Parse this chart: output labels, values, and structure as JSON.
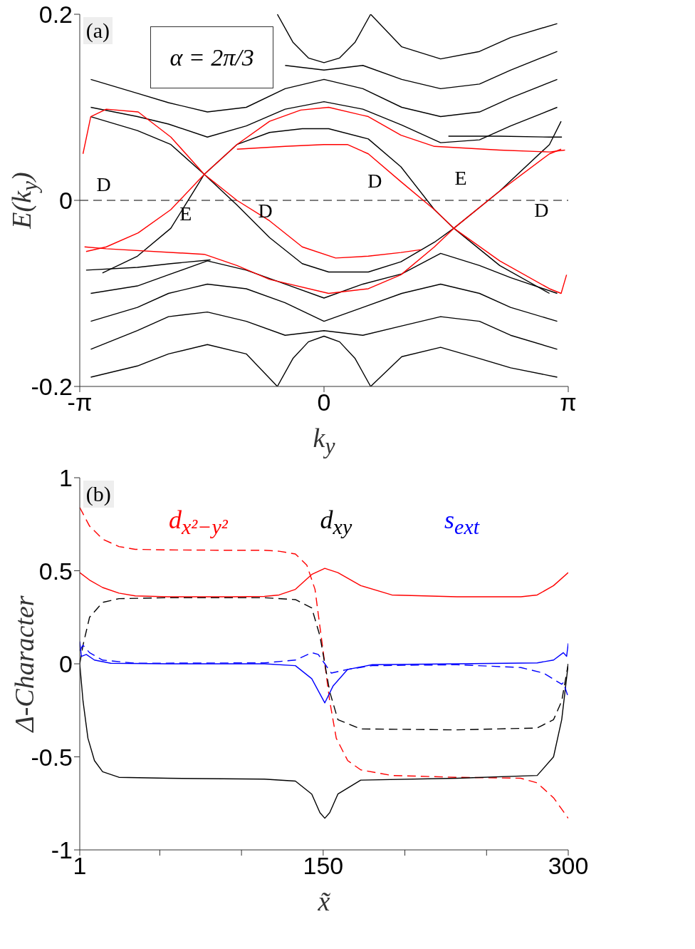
{
  "chart_data": [
    {
      "type": "line",
      "xlabel": "k$_{y}$",
      "ylabel": "E(k$_{y}$)",
      "xlim": [
        -3.14159,
        3.14159
      ],
      "xticks": [
        {
          "value": -3.14159,
          "label": "-π"
        },
        0,
        {
          "value": 3.14159,
          "label": "π"
        }
      ],
      "ylim": [
        -0.2,
        0.2
      ],
      "yticks": [
        -0.2,
        0,
        0.2
      ],
      "annotations": [
        "(a)",
        "α = 2π/3",
        "D",
        "E",
        "D",
        "D",
        "E",
        "D"
      ],
      "ref_lines": [
        {
          "axis": "y",
          "value": 0,
          "color": "#000000",
          "line_style": "dashed"
        }
      ],
      "series": [
        {
          "color": "#000000",
          "x": [
            -3.0,
            -2.4,
            -2.0,
            -1.5,
            -1.0,
            -0.5,
            0,
            0.5,
            1.0,
            1.5,
            2.0,
            2.4,
            3.0
          ],
          "values": [
            0.1,
            0.09,
            0.082,
            0.068,
            0.08,
            0.098,
            0.106,
            0.098,
            0.081,
            0.062,
            0.065,
            0.08,
            0.1
          ]
        },
        {
          "color": "#000000",
          "x": [
            -3.0,
            -2.4,
            -2.0,
            -1.5,
            -1.0,
            -0.5,
            0,
            0.5,
            1.0,
            1.5,
            2.0,
            2.4,
            3.0
          ],
          "values": [
            0.13,
            0.115,
            0.105,
            0.095,
            0.1,
            0.12,
            0.13,
            0.12,
            0.1,
            0.09,
            0.095,
            0.11,
            0.13
          ]
        },
        {
          "color": "#000000",
          "x": [
            -0.5,
            0,
            0.5,
            1.0,
            1.5,
            2.0,
            2.4,
            3.0
          ],
          "values": [
            0.145,
            0.14,
            0.145,
            0.13,
            0.12,
            0.125,
            0.14,
            0.16
          ]
        },
        {
          "color": "#000000",
          "x": [
            0.6,
            1.0,
            1.5,
            2.0,
            2.4,
            3.0
          ],
          "values": [
            0.2,
            0.165,
            0.152,
            0.16,
            0.175,
            0.19
          ]
        },
        {
          "color": "#000000",
          "x": [
            -0.6,
            -0.4,
            -0.2,
            0,
            0.2,
            0.4,
            0.6
          ],
          "values": [
            0.2,
            0.17,
            0.153,
            0.148,
            0.153,
            0.17,
            0.2
          ]
        },
        {
          "color": "#000000",
          "x": [
            -3.0,
            -2.4,
            -2.0,
            -1.5,
            -1.0,
            -0.5,
            0,
            0.5,
            1.0,
            1.5,
            2.0,
            2.4,
            3.0
          ],
          "values": [
            -0.1,
            -0.092,
            -0.08,
            -0.065,
            -0.075,
            -0.09,
            -0.105,
            -0.09,
            -0.079,
            -0.057,
            -0.07,
            -0.083,
            -0.1
          ]
        },
        {
          "color": "#000000",
          "x": [
            -3.0,
            -2.4,
            -2.0,
            -1.5,
            -1.0,
            -0.5,
            0,
            0.5,
            1.0,
            1.5,
            2.0,
            2.4,
            3.0
          ],
          "values": [
            -0.13,
            -0.115,
            -0.1,
            -0.09,
            -0.095,
            -0.11,
            -0.13,
            -0.115,
            -0.1,
            -0.09,
            -0.1,
            -0.115,
            -0.13
          ]
        },
        {
          "color": "#000000",
          "x": [
            -3.0,
            -2.4,
            -2.0,
            -1.5,
            -1.0,
            -0.5,
            0,
            0.5,
            1.0,
            1.5,
            2.0,
            2.4,
            3.0
          ],
          "values": [
            -0.16,
            -0.14,
            -0.125,
            -0.12,
            -0.13,
            -0.145,
            -0.14,
            -0.145,
            -0.135,
            -0.125,
            -0.13,
            -0.145,
            -0.16
          ]
        },
        {
          "color": "#000000",
          "x": [
            -3.0,
            -2.4,
            -2.0,
            -1.5,
            -1.0,
            -0.6
          ],
          "values": [
            -0.19,
            -0.178,
            -0.165,
            -0.155,
            -0.165,
            -0.2
          ]
        },
        {
          "color": "#000000",
          "x": [
            0.6,
            1.0,
            1.5,
            2.0,
            2.4,
            3.0
          ],
          "values": [
            -0.2,
            -0.168,
            -0.158,
            -0.17,
            -0.18,
            -0.19
          ]
        },
        {
          "color": "#000000",
          "x": [
            -0.6,
            -0.4,
            -0.2,
            0,
            0.2,
            0.4,
            0.6
          ],
          "values": [
            -0.2,
            -0.17,
            -0.152,
            -0.146,
            -0.152,
            -0.17,
            -0.2
          ]
        },
        {
          "color": "#000000",
          "x": [
            -2.85,
            -2.4,
            -1.97,
            -1.54,
            -1.12,
            -0.7,
            -0.28,
            0.06,
            0.57,
            0.99,
            1.42,
            1.67,
            2.26,
            2.9
          ],
          "values": [
            -0.078,
            -0.06,
            -0.03,
            0.028,
            0.06,
            0.073,
            0.077,
            0.077,
            0.066,
            0.036,
            -0.01,
            -0.03,
            -0.07,
            -0.1
          ]
        },
        {
          "color": "#000000",
          "x": [
            -3.0,
            -2.4,
            -1.97,
            -1.54,
            -1.12,
            -0.7,
            -0.28,
            0.06,
            0.57,
            0.99,
            1.42,
            1.67,
            2.26,
            2.9,
            3.05
          ],
          "values": [
            0.09,
            0.075,
            0.06,
            0.028,
            -0.005,
            -0.04,
            -0.068,
            -0.077,
            -0.077,
            -0.066,
            -0.045,
            -0.03,
            0.01,
            0.06,
            0.085
          ]
        },
        {
          "color": "#000000",
          "x": [
            -3.06,
            -2.4,
            -1.97,
            -1.46
          ],
          "values": [
            -0.075,
            -0.072,
            -0.068,
            -0.064
          ]
        },
        {
          "color": "#000000",
          "x": [
            1.6,
            2.26,
            2.9,
            3.06
          ],
          "values": [
            0.069,
            0.069,
            0.068,
            0.068
          ]
        },
        {
          "color": "#ff0000",
          "x": [
            -3.06,
            -2.8,
            -2.39,
            -1.97,
            -1.54,
            -1.12,
            -0.7,
            -0.3,
            0.06,
            0.57,
            0.99,
            1.42,
            2.26,
            2.9,
            3.1
          ],
          "values": [
            -0.055,
            -0.05,
            -0.035,
            -0.01,
            0.028,
            0.06,
            0.085,
            0.097,
            0.1,
            0.09,
            0.07,
            0.058,
            0.054,
            0.052,
            0.054
          ]
        },
        {
          "color": "#ff0000",
          "x": [
            -3.1,
            -3.0,
            -2.8,
            -2.39,
            -1.97,
            -1.54,
            -1.12,
            -0.7,
            -0.28,
            0.15,
            0.57,
            0.99,
            1.25
          ],
          "values": [
            0.05,
            0.09,
            0.098,
            0.095,
            0.068,
            0.028,
            0.0,
            -0.022,
            -0.05,
            -0.062,
            -0.06,
            -0.056,
            -0.053
          ]
        },
        {
          "color": "#ff0000",
          "x": [
            -1.12,
            -0.5,
            0.0,
            0.3,
            0.57,
            0.99,
            1.42,
            1.67,
            2.26,
            2.9,
            3.05,
            3.12
          ],
          "values": [
            0.055,
            0.058,
            0.06,
            0.06,
            0.05,
            0.02,
            -0.01,
            -0.03,
            -0.065,
            -0.095,
            -0.1,
            -0.08
          ]
        },
        {
          "color": "#ff0000",
          "x": [
            -3.08,
            -2.8,
            -1.54,
            -1.12,
            -0.7,
            0.06,
            0.57,
            0.99,
            1.42,
            1.67,
            2.26,
            2.9,
            3.05
          ],
          "values": [
            -0.05,
            -0.052,
            -0.058,
            -0.07,
            -0.085,
            -0.1,
            -0.095,
            -0.08,
            -0.05,
            -0.03,
            0.01,
            0.05,
            0.055
          ]
        }
      ]
    },
    {
      "type": "line",
      "xlabel": "x̃",
      "ylabel": "Δ-Character",
      "xlim": [
        1,
        300
      ],
      "xticks": [
        1,
        {
          "value": 50,
          "label": null
        },
        {
          "value": 100,
          "label": null
        },
        150,
        {
          "value": 200,
          "label": null
        },
        {
          "value": 250,
          "label": null
        },
        300
      ],
      "ylim": [
        -1,
        1
      ],
      "yticks": [
        -1,
        -0.5,
        0,
        0.5,
        1
      ],
      "legend": "top",
      "annotations": [
        "(b)"
      ],
      "series": [
        {
          "name": "d$_{x²−y²}$",
          "color": "#ff0000",
          "line_style": "solid",
          "x": [
            1,
            7,
            15,
            25,
            35,
            55,
            94,
            114,
            123,
            133,
            143,
            151,
            159,
            173,
            192,
            232,
            271,
            281,
            291,
            300
          ],
          "values": [
            0.49,
            0.45,
            0.41,
            0.38,
            0.365,
            0.36,
            0.36,
            0.362,
            0.37,
            0.4,
            0.48,
            0.513,
            0.49,
            0.42,
            0.37,
            0.36,
            0.36,
            0.37,
            0.42,
            0.49
          ]
        },
        {
          "color": "#ff0000",
          "line_style": "dashed",
          "x": [
            1,
            7,
            15,
            25,
            35,
            55,
            94,
            114,
            123,
            133,
            140,
            145,
            148,
            151,
            154,
            158,
            165,
            173,
            192,
            232,
            271,
            281,
            291,
            300
          ],
          "values": [
            0.84,
            0.74,
            0.67,
            0.63,
            0.615,
            0.612,
            0.61,
            0.61,
            0.605,
            0.59,
            0.53,
            0.4,
            0.2,
            0.0,
            -0.2,
            -0.4,
            -0.52,
            -0.57,
            -0.6,
            -0.61,
            -0.615,
            -0.64,
            -0.72,
            -0.83
          ]
        },
        {
          "name": "d$_{xy}$",
          "color": "#000000",
          "line_style": "solid",
          "x": [
            1,
            3,
            6,
            10,
            15,
            25,
            55,
            114,
            133,
            143,
            148,
            151,
            154,
            159,
            173,
            232,
            281,
            291,
            296,
            300
          ],
          "values": [
            0.0,
            -0.2,
            -0.4,
            -0.52,
            -0.58,
            -0.61,
            -0.615,
            -0.62,
            -0.63,
            -0.7,
            -0.8,
            -0.83,
            -0.8,
            -0.7,
            -0.625,
            -0.615,
            -0.6,
            -0.5,
            -0.3,
            0.0
          ]
        },
        {
          "color": "#000000",
          "line_style": "dashed",
          "x": [
            1,
            3,
            7,
            15,
            25,
            55,
            114,
            133,
            143,
            148,
            151,
            154,
            159,
            173,
            232,
            281,
            291,
            296,
            300
          ],
          "values": [
            0.0,
            0.1,
            0.25,
            0.33,
            0.35,
            0.355,
            0.355,
            0.345,
            0.3,
            0.15,
            0.0,
            -0.15,
            -0.3,
            -0.35,
            -0.355,
            -0.345,
            -0.3,
            -0.2,
            0.0
          ]
        },
        {
          "name": "s$_{ext}$",
          "color": "#0000ff",
          "line_style": "solid",
          "x": [
            1,
            2,
            5,
            10,
            20,
            55,
            114,
            133,
            143,
            151,
            156,
            165,
            180,
            232,
            281,
            291,
            297,
            299,
            300
          ],
          "values": [
            0.12,
            0.04,
            0.05,
            0.02,
            0.003,
            0.0,
            0.0,
            -0.01,
            -0.08,
            -0.21,
            -0.12,
            -0.03,
            -0.005,
            0.0,
            0.005,
            0.02,
            0.06,
            0.04,
            0.11
          ]
        },
        {
          "color": "#0000ff",
          "line_style": "dashed",
          "x": [
            1,
            3,
            7,
            15,
            35,
            114,
            133,
            143,
            147,
            151,
            155,
            165,
            180,
            232,
            271,
            285,
            296,
            297,
            300
          ],
          "values": [
            0.07,
            0.1,
            0.06,
            0.02,
            0.003,
            0.005,
            0.02,
            0.06,
            0.05,
            0.0,
            -0.05,
            -0.03,
            -0.01,
            -0.005,
            -0.02,
            -0.05,
            -0.11,
            -0.1,
            -0.18
          ]
        }
      ]
    }
  ]
}
